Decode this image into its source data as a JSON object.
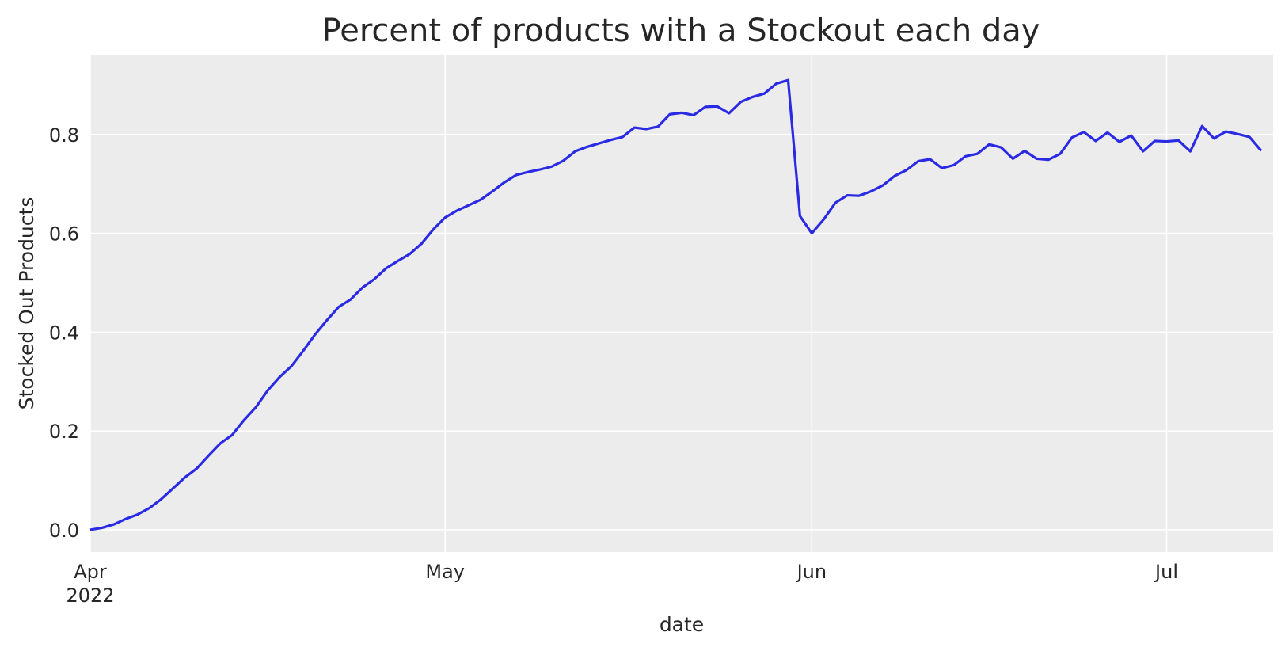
{
  "chart_data": {
    "type": "line",
    "title": "Percent of products with a Stockout each day",
    "xlabel": "date",
    "ylabel": "Stocked Out Products",
    "x_start": "2022-04-01",
    "x_end": "2022-07-10",
    "xlim": [
      "2022-04-01",
      "2022-07-10"
    ],
    "ylim": [
      -0.045,
      0.96
    ],
    "x_ticks": [
      {
        "date": "2022-04-01",
        "label": "Apr",
        "sublabel": "2022"
      },
      {
        "date": "2022-05-01",
        "label": "May",
        "sublabel": ""
      },
      {
        "date": "2022-06-01",
        "label": "Jun",
        "sublabel": ""
      },
      {
        "date": "2022-07-01",
        "label": "Jul",
        "sublabel": ""
      }
    ],
    "y_ticks": [
      {
        "value": 0.0,
        "label": "0.0"
      },
      {
        "value": 0.2,
        "label": "0.2"
      },
      {
        "value": 0.4,
        "label": "0.4"
      },
      {
        "value": 0.6,
        "label": "0.6"
      },
      {
        "value": 0.8,
        "label": "0.8"
      }
    ],
    "grid": true,
    "background": "#ececec",
    "grid_color": "#ffffff",
    "series": [
      {
        "color": "#2a2ae4",
        "values": [
          0.0,
          0.004,
          0.011,
          0.022,
          0.031,
          0.044,
          0.062,
          0.084,
          0.106,
          0.124,
          0.15,
          0.175,
          0.192,
          0.222,
          0.248,
          0.282,
          0.309,
          0.331,
          0.362,
          0.395,
          0.424,
          0.451,
          0.466,
          0.49,
          0.507,
          0.529,
          0.544,
          0.558,
          0.579,
          0.608,
          0.632,
          0.646,
          0.657,
          0.668,
          0.685,
          0.703,
          0.718,
          0.724,
          0.729,
          0.735,
          0.747,
          0.766,
          0.775,
          0.782,
          0.789,
          0.795,
          0.814,
          0.811,
          0.816,
          0.841,
          0.844,
          0.839,
          0.856,
          0.857,
          0.843,
          0.866,
          0.876,
          0.883,
          0.903,
          0.91,
          0.635,
          0.6,
          0.628,
          0.662,
          0.677,
          0.676,
          0.685,
          0.697,
          0.716,
          0.728,
          0.746,
          0.75,
          0.732,
          0.738,
          0.756,
          0.761,
          0.78,
          0.774,
          0.751,
          0.767,
          0.751,
          0.749,
          0.761,
          0.794,
          0.805,
          0.787,
          0.804,
          0.785,
          0.798,
          0.766,
          0.787,
          0.786,
          0.788,
          0.766,
          0.817,
          0.792,
          0.806,
          0.801,
          0.795,
          0.767
        ]
      }
    ]
  }
}
